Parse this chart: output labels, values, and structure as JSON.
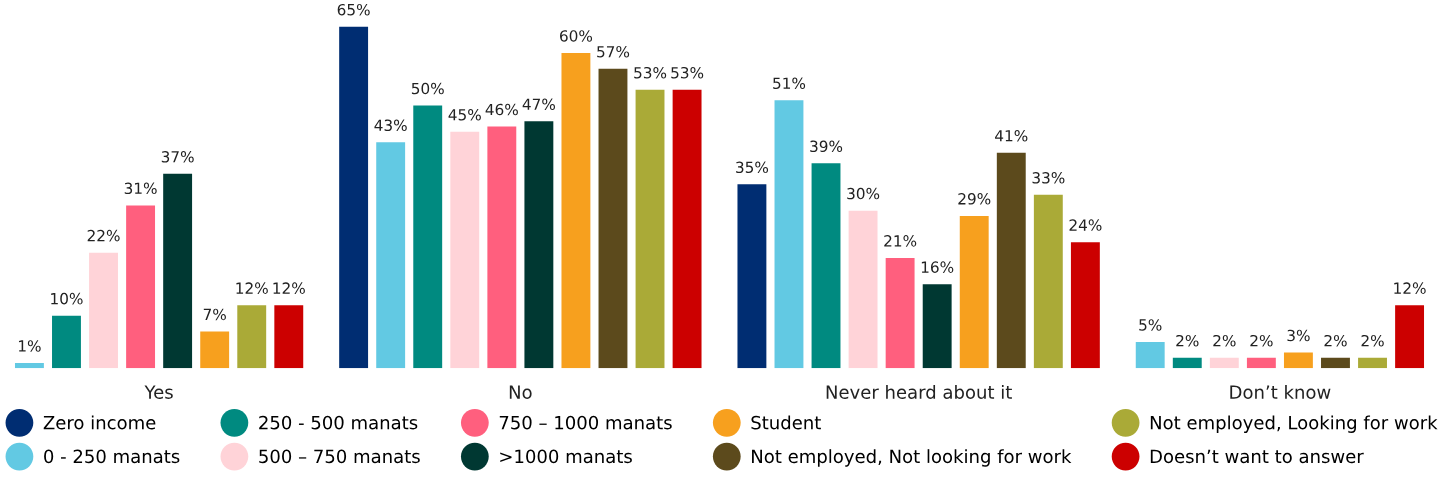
{
  "chart_data": {
    "type": "bar",
    "categories": [
      "Yes",
      "No",
      "Never heard about it",
      "Don’t know"
    ],
    "series": [
      {
        "name": "Zero income",
        "color": "#002d72",
        "values": [
          null,
          65,
          35,
          null
        ],
        "value_labels": [
          null,
          "65%",
          "35%",
          null
        ]
      },
      {
        "name": "0 - 250 manats",
        "color": "#62c9e3",
        "values": [
          1,
          43,
          51,
          5
        ],
        "value_labels": [
          "1%",
          "43%",
          "51%",
          "5%"
        ]
      },
      {
        "name": "250 - 500 manats",
        "color": "#008a80",
        "values": [
          10,
          50,
          39,
          2
        ],
        "value_labels": [
          "10%",
          "50%",
          "39%",
          "2%"
        ]
      },
      {
        "name": "500 – 750 manats",
        "color": "#ffd3d8",
        "values": [
          22,
          45,
          30,
          2
        ],
        "value_labels": [
          "22%",
          "45%",
          "30%",
          "2%"
        ]
      },
      {
        "name": "750 – 1000 manats",
        "color": "#ff5f7e",
        "values": [
          31,
          46,
          21,
          2
        ],
        "value_labels": [
          "31%",
          "46%",
          "21%",
          "2%"
        ]
      },
      {
        "name": ">1000 manats",
        "color": "#003832",
        "values": [
          37,
          47,
          16,
          null
        ],
        "value_labels": [
          "37%",
          "47%",
          "16%",
          null
        ]
      },
      {
        "name": "Student",
        "color": "#f7a01e",
        "values": [
          7,
          60,
          29,
          3
        ],
        "value_labels": [
          "7%",
          "60%",
          "29%",
          "3%"
        ]
      },
      {
        "name": "Not employed, Not looking for work",
        "color": "#5c4a1c",
        "values": [
          null,
          57,
          41,
          2
        ],
        "value_labels": [
          null,
          "57%",
          "41%",
          "2%"
        ]
      },
      {
        "name": "Not employed, Looking for work",
        "color": "#aaaa37",
        "values": [
          12,
          53,
          33,
          2
        ],
        "value_labels": [
          "12%",
          "53%",
          "33%",
          "2%"
        ]
      },
      {
        "name": "Doesn’t want to answer",
        "color": "#cc0000",
        "values": [
          12,
          53,
          24,
          12
        ],
        "value_labels": [
          "12%",
          "53%",
          "24%",
          "12%"
        ]
      }
    ],
    "legend": "bottom",
    "grid": false
  }
}
